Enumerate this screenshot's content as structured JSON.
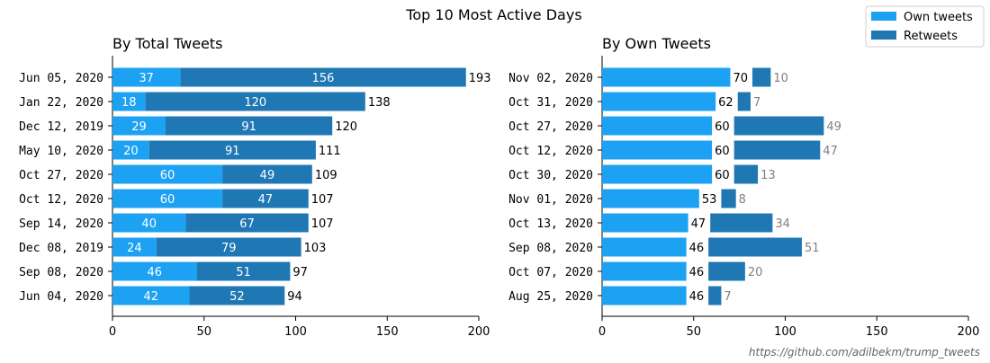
{
  "figure": {
    "title": "Top 10 Most Active Days",
    "credit": "https://github.com/adilbekm/trump_tweets"
  },
  "legend": {
    "placement": "top-right",
    "items": [
      {
        "label": "Own tweets",
        "color": "#1da1f2"
      },
      {
        "label": "Retweets",
        "color": "#1f77b4"
      }
    ]
  },
  "chart_data": [
    {
      "type": "bar",
      "orientation": "horizontal",
      "stacked": true,
      "title": "By Total Tweets",
      "xlim": [
        0,
        200
      ],
      "xticks": [
        0,
        50,
        100,
        150,
        200
      ],
      "categories": [
        "Jun 05, 2020",
        "Jan 22, 2020",
        "Dec 12, 2019",
        "May 10, 2020",
        "Oct 27, 2020",
        "Oct 12, 2020",
        "Sep 14, 2020",
        "Dec 08, 2019",
        "Sep 08, 2020",
        "Jun 04, 2020"
      ],
      "series": [
        {
          "name": "Own tweets",
          "color": "#1da1f2",
          "values": [
            37,
            18,
            29,
            20,
            60,
            60,
            40,
            24,
            46,
            42
          ]
        },
        {
          "name": "Retweets",
          "color": "#1f77b4",
          "values": [
            156,
            120,
            91,
            91,
            49,
            47,
            67,
            79,
            51,
            52
          ]
        }
      ],
      "totals": [
        193,
        138,
        120,
        111,
        109,
        107,
        107,
        103,
        97,
        94
      ]
    },
    {
      "type": "bar",
      "orientation": "horizontal",
      "title": "By Own Tweets",
      "xlim": [
        0,
        200
      ],
      "xticks": [
        0,
        50,
        100,
        150,
        200
      ],
      "categories": [
        "Nov 02, 2020",
        "Oct 31, 2020",
        "Oct 27, 2020",
        "Oct 12, 2020",
        "Oct 30, 2020",
        "Nov 01, 2020",
        "Oct 13, 2020",
        "Sep 08, 2020",
        "Oct 07, 2020",
        "Aug 25, 2020"
      ],
      "series": [
        {
          "name": "Own tweets",
          "color": "#1da1f2",
          "values": [
            70,
            62,
            60,
            60,
            60,
            53,
            47,
            46,
            46,
            46
          ]
        },
        {
          "name": "Retweets",
          "color": "#1f77b4",
          "values": [
            10,
            7,
            49,
            47,
            13,
            8,
            34,
            51,
            20,
            7
          ]
        }
      ]
    }
  ]
}
